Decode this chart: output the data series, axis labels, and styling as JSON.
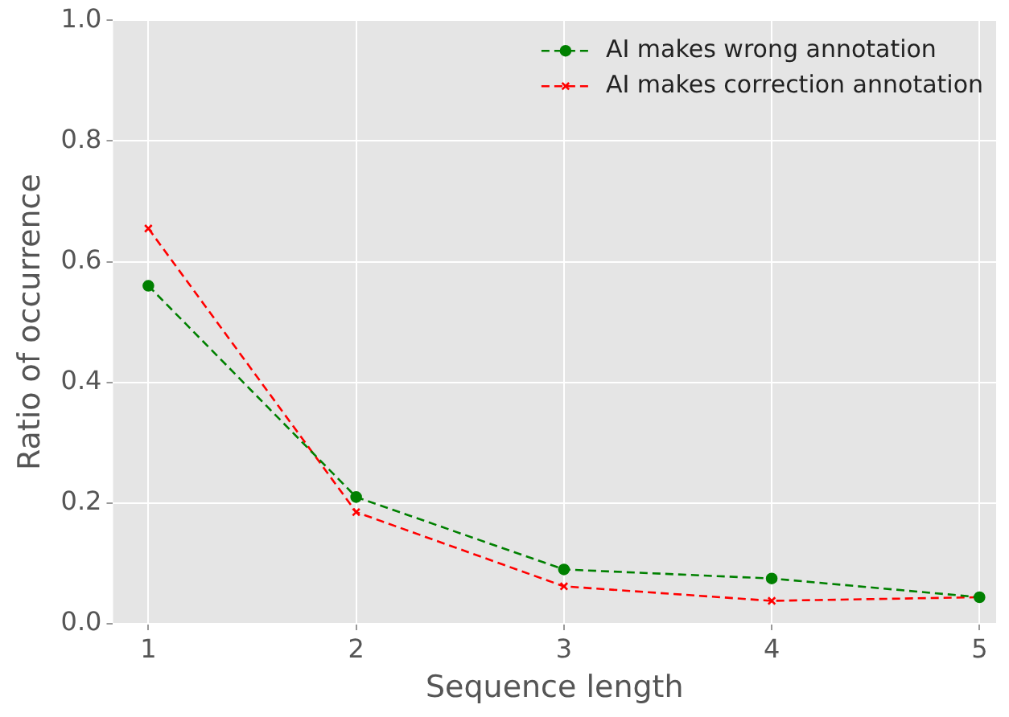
{
  "chart_data": {
    "type": "line",
    "xlabel": "Sequence length",
    "ylabel": "Ratio of occurrence",
    "x": [
      1,
      2,
      3,
      4,
      5
    ],
    "series": [
      {
        "name": "AI makes wrong annotation",
        "color": "#008000",
        "marker": "circle",
        "values": [
          0.56,
          0.21,
          0.09,
          0.075,
          0.044
        ]
      },
      {
        "name": "AI makes correction annotation",
        "color": "#ff0000",
        "marker": "cross",
        "values": [
          0.655,
          0.185,
          0.062,
          0.038,
          0.044
        ]
      }
    ],
    "xlim": [
      0.83,
      5.08
    ],
    "xticks": [
      1,
      2,
      3,
      4,
      5
    ],
    "ylim": [
      0,
      1
    ],
    "yticks": [
      {
        "value": 0,
        "label": "0.0"
      },
      0.2,
      0.4,
      0.6,
      0.8,
      {
        "value": 1,
        "label": "1.0"
      }
    ],
    "grid": true,
    "legend": "top right",
    "line_style": "dashed"
  }
}
